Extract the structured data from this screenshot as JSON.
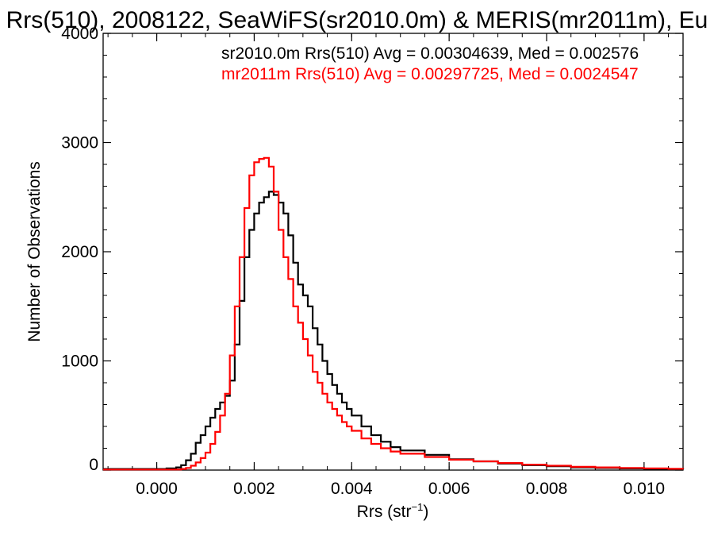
{
  "chart_data": {
    "type": "line",
    "title": "Rrs(510), 2008122, SeaWiFS(sr2010.0m) & MERIS(mr2011m), Eu",
    "xlabel": "Rrs (str",
    "xlabel_sup": "−1",
    "xlabel_close": ")",
    "ylabel": "Number of Observations",
    "xlim": [
      -0.0011,
      0.0108
    ],
    "ylim": [
      0,
      4000
    ],
    "xticks": [
      0.0,
      0.002,
      0.004,
      0.006,
      0.008,
      0.01
    ],
    "xtick_labels": [
      "0.000",
      "0.002",
      "0.004",
      "0.006",
      "0.008",
      "0.010"
    ],
    "yticks": [
      0,
      1000,
      2000,
      3000,
      4000
    ],
    "ytick_labels": [
      "0",
      "1000",
      "2000",
      "3000",
      "4000"
    ],
    "grid": false,
    "legend_placement": "top-right",
    "annotations": [
      {
        "text": "sr2010.0m Rrs(510) Avg = 0.00304639, Med = 0.002576",
        "color": "#000000"
      },
      {
        "text": "mr2011m Rrs(510) Avg = 0.00297725, Med = 0.0024547",
        "color": "#ff0000"
      }
    ],
    "series": [
      {
        "color": "#000000",
        "x": [
          -0.0011,
          0.0002,
          0.0004,
          0.0005,
          0.0006,
          0.0007,
          0.0008,
          0.0009,
          0.001,
          0.0011,
          0.0012,
          0.0013,
          0.0014,
          0.0015,
          0.0016,
          0.0017,
          0.0018,
          0.0019,
          0.002,
          0.0021,
          0.0022,
          0.0023,
          0.0024,
          0.0025,
          0.0026,
          0.0027,
          0.0028,
          0.0029,
          0.003,
          0.0031,
          0.0032,
          0.0033,
          0.0034,
          0.0035,
          0.0036,
          0.0037,
          0.0038,
          0.0039,
          0.004,
          0.0042,
          0.0044,
          0.0046,
          0.0048,
          0.005,
          0.0055,
          0.006,
          0.0065,
          0.007,
          0.0075,
          0.008,
          0.0085,
          0.009,
          0.0095,
          0.01,
          0.0105,
          0.0108
        ],
        "y": [
          10,
          15,
          25,
          45,
          90,
          150,
          250,
          320,
          400,
          480,
          560,
          620,
          680,
          820,
          1150,
          1550,
          1950,
          2200,
          2350,
          2450,
          2500,
          2550,
          2520,
          2450,
          2350,
          2150,
          1900,
          1700,
          1600,
          1500,
          1300,
          1150,
          1000,
          880,
          780,
          700,
          620,
          560,
          500,
          400,
          320,
          260,
          210,
          180,
          140,
          100,
          80,
          60,
          45,
          35,
          25,
          20,
          15,
          12,
          10,
          8
        ]
      },
      {
        "color": "#ff0000",
        "x": [
          -0.0011,
          0.0005,
          0.0006,
          0.0007,
          0.0008,
          0.0009,
          0.001,
          0.0011,
          0.0012,
          0.0013,
          0.0014,
          0.0015,
          0.0016,
          0.0017,
          0.0018,
          0.0019,
          0.002,
          0.0021,
          0.0022,
          0.0023,
          0.0024,
          0.0025,
          0.0026,
          0.0027,
          0.0028,
          0.0029,
          0.003,
          0.0031,
          0.0032,
          0.0033,
          0.0034,
          0.0035,
          0.0036,
          0.0037,
          0.0038,
          0.0039,
          0.004,
          0.0042,
          0.0044,
          0.0046,
          0.0048,
          0.005,
          0.0055,
          0.006,
          0.0065,
          0.007,
          0.0075,
          0.008,
          0.0085,
          0.009,
          0.0095,
          0.01,
          0.0105,
          0.0108
        ],
        "y": [
          5,
          10,
          20,
          40,
          70,
          110,
          160,
          240,
          350,
          500,
          700,
          1050,
          1500,
          1950,
          2400,
          2700,
          2820,
          2850,
          2860,
          2780,
          2550,
          2200,
          1950,
          1750,
          1500,
          1350,
          1200,
          1050,
          900,
          800,
          700,
          620,
          560,
          500,
          440,
          400,
          360,
          290,
          240,
          200,
          170,
          150,
          120,
          95,
          80,
          65,
          50,
          40,
          30,
          25,
          20,
          15,
          12,
          10
        ]
      }
    ]
  }
}
